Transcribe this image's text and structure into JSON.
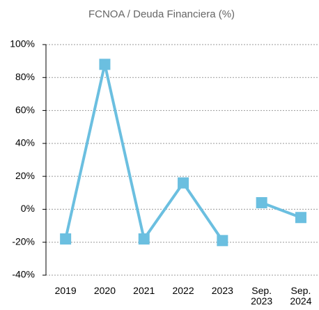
{
  "chart_data": {
    "type": "line",
    "title": "FCNOA / Deuda Financiera (%)",
    "categories": [
      "2019",
      "2020",
      "2021",
      "2022",
      "2023",
      "Sep. 2023",
      "Sep. 2024"
    ],
    "series": [
      {
        "color": "#6bbfe0",
        "values": [
          -18,
          88,
          -18,
          16,
          -19,
          null,
          null
        ]
      },
      {
        "color": "#6bbfe0",
        "values": [
          null,
          null,
          null,
          null,
          null,
          4,
          -5
        ]
      }
    ],
    "ylim": [
      -40,
      100
    ],
    "yticks": [
      {
        "value": -40,
        "label": "-40%"
      },
      {
        "value": -20,
        "label": "-20%"
      },
      {
        "value": 0,
        "label": "0%"
      },
      {
        "value": 20,
        "label": "20%"
      },
      {
        "value": 40,
        "label": "40%"
      },
      {
        "value": 60,
        "label": "60%"
      },
      {
        "value": 80,
        "label": "80%"
      },
      {
        "value": 100,
        "label": "100%"
      }
    ],
    "grid": true
  }
}
